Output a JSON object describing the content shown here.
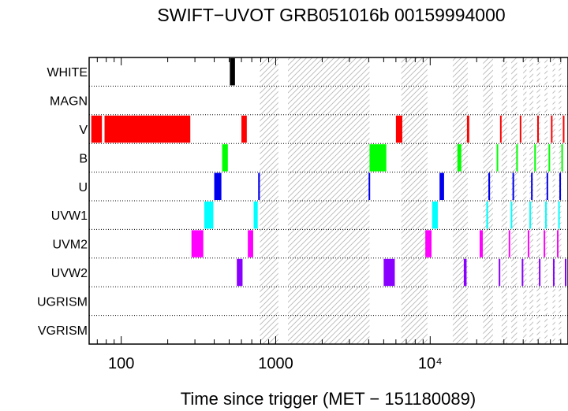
{
  "chart_data": {
    "type": "timeline",
    "title": "SWIFT−UVOT GRB051016b 00159994000",
    "xlabel": "Time since trigger (MET − 151180089)",
    "ylabel": "",
    "x_scale": "log",
    "xlim": [
      62,
      78000
    ],
    "x_ticks": [
      {
        "value": 100,
        "label": "100"
      },
      {
        "value": 1000,
        "label": "1000"
      },
      {
        "value": 10000,
        "label": "10⁴"
      }
    ],
    "rows": [
      "WHITE",
      "MAGN",
      "V",
      "B",
      "U",
      "UVW1",
      "UVM2",
      "UVW2",
      "UGRISM",
      "VGRISM"
    ],
    "colors": {
      "WHITE": "#000000",
      "MAGN": "#000000",
      "V": "#ff0000",
      "B": "#00ff00",
      "U": "#0000ee",
      "UVW1": "#00ffff",
      "UVM2": "#ff00ff",
      "UVW2": "#8a00ff",
      "UGRISM": "#000000",
      "VGRISM": "#000000"
    },
    "unobservable_intervals": [
      [
        790,
        1040
      ],
      [
        1200,
        4050
      ],
      [
        6500,
        9600
      ],
      [
        14000,
        17500
      ],
      [
        22000,
        25500
      ],
      [
        29000,
        31500
      ],
      [
        33500,
        36500
      ],
      [
        40000,
        42000
      ],
      [
        44000,
        46500
      ],
      [
        49000,
        51500
      ],
      [
        55000,
        57500
      ],
      [
        62000,
        64500
      ],
      [
        68000,
        70500
      ]
    ],
    "exposures": [
      {
        "filter": "WHITE",
        "start": 505,
        "end": 545
      },
      {
        "filter": "V",
        "start": 64,
        "end": 75
      },
      {
        "filter": "V",
        "start": 78,
        "end": 280
      },
      {
        "filter": "V",
        "start": 600,
        "end": 650
      },
      {
        "filter": "V",
        "start": 6000,
        "end": 6600
      },
      {
        "filter": "V",
        "start": 17300,
        "end": 17900
      },
      {
        "filter": "V",
        "start": 28400,
        "end": 28900
      },
      {
        "filter": "V",
        "start": 38100,
        "end": 38800
      },
      {
        "filter": "V",
        "start": 49500,
        "end": 50300
      },
      {
        "filter": "V",
        "start": 60700,
        "end": 61700
      },
      {
        "filter": "V",
        "start": 72500,
        "end": 73700
      },
      {
        "filter": "B",
        "start": 450,
        "end": 490
      },
      {
        "filter": "B",
        "start": 4050,
        "end": 5200
      },
      {
        "filter": "B",
        "start": 15000,
        "end": 15900
      },
      {
        "filter": "B",
        "start": 27000,
        "end": 27500
      },
      {
        "filter": "B",
        "start": 36200,
        "end": 36800
      },
      {
        "filter": "B",
        "start": 47500,
        "end": 48000
      },
      {
        "filter": "B",
        "start": 58600,
        "end": 59500
      },
      {
        "filter": "B",
        "start": 71000,
        "end": 72000
      },
      {
        "filter": "U",
        "start": 400,
        "end": 445
      },
      {
        "filter": "U",
        "start": 770,
        "end": 790
      },
      {
        "filter": "U",
        "start": 4000,
        "end": 4080
      },
      {
        "filter": "U",
        "start": 11500,
        "end": 12300
      },
      {
        "filter": "U",
        "start": 23800,
        "end": 24400
      },
      {
        "filter": "U",
        "start": 34200,
        "end": 34800
      },
      {
        "filter": "U",
        "start": 45200,
        "end": 45800
      },
      {
        "filter": "U",
        "start": 57000,
        "end": 57700
      },
      {
        "filter": "U",
        "start": 69000,
        "end": 69800
      },
      {
        "filter": "UVW1",
        "start": 345,
        "end": 395
      },
      {
        "filter": "UVW1",
        "start": 720,
        "end": 765
      },
      {
        "filter": "UVW1",
        "start": 10300,
        "end": 11200
      },
      {
        "filter": "UVW1",
        "start": 23100,
        "end": 23700
      },
      {
        "filter": "UVW1",
        "start": 33300,
        "end": 33900
      },
      {
        "filter": "UVW1",
        "start": 44100,
        "end": 44700
      },
      {
        "filter": "UVW1",
        "start": 55800,
        "end": 56500
      },
      {
        "filter": "UVW1",
        "start": 67800,
        "end": 68600
      },
      {
        "filter": "UVM2",
        "start": 285,
        "end": 340
      },
      {
        "filter": "UVM2",
        "start": 660,
        "end": 715
      },
      {
        "filter": "UVM2",
        "start": 9300,
        "end": 10200
      },
      {
        "filter": "UVM2",
        "start": 20900,
        "end": 21900
      },
      {
        "filter": "UVM2",
        "start": 32300,
        "end": 32900
      },
      {
        "filter": "UVM2",
        "start": 43000,
        "end": 43600
      },
      {
        "filter": "UVM2",
        "start": 54600,
        "end": 55200
      },
      {
        "filter": "UVM2",
        "start": 66600,
        "end": 67300
      },
      {
        "filter": "UVW2",
        "start": 560,
        "end": 610
      },
      {
        "filter": "UVW2",
        "start": 5000,
        "end": 5900
      },
      {
        "filter": "UVW2",
        "start": 16500,
        "end": 17200
      },
      {
        "filter": "UVW2",
        "start": 27800,
        "end": 28400
      },
      {
        "filter": "UVW2",
        "start": 39300,
        "end": 39900
      },
      {
        "filter": "UVW2",
        "start": 50800,
        "end": 51500
      },
      {
        "filter": "UVW2",
        "start": 62700,
        "end": 63500
      },
      {
        "filter": "UVW2",
        "start": 74800,
        "end": 75800
      }
    ]
  }
}
